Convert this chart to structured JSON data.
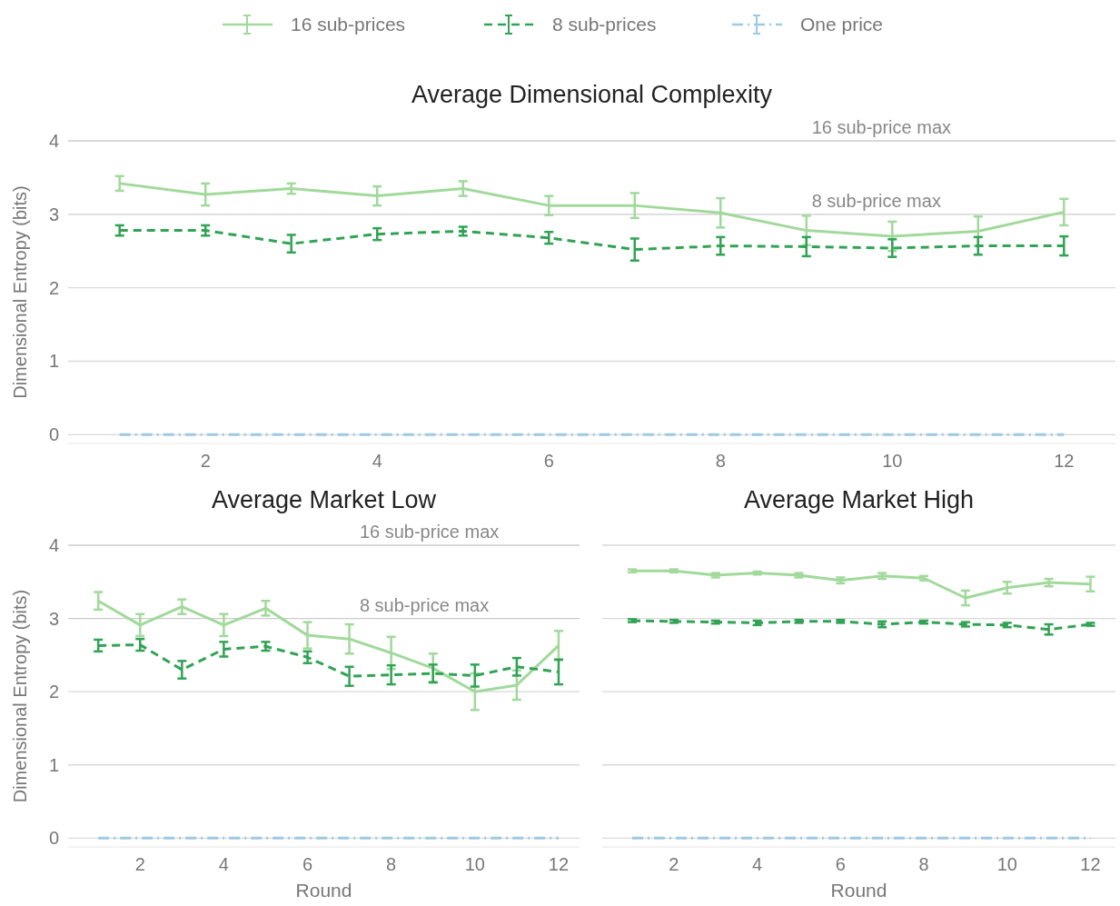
{
  "chart_data": [
    {
      "type": "line",
      "title": "Average Dimensional Complexity",
      "ylabel": "Dimensional Entropy (bits)",
      "x": [
        1,
        2,
        3,
        4,
        5,
        6,
        7,
        8,
        9,
        10,
        11,
        12
      ],
      "xlim": [
        0.4,
        12.6
      ],
      "ylim": [
        -0.12,
        4
      ],
      "xticks": [
        2,
        4,
        6,
        8,
        10,
        12
      ],
      "yticks": [
        0,
        1,
        2,
        3,
        4
      ],
      "grid": "y",
      "legend": "top",
      "marker": "none",
      "ref_lines": [
        {
          "axis": "y",
          "value": 4,
          "label": "16 sub-price max",
          "color": "#cccccc"
        },
        {
          "axis": "y",
          "value": 3,
          "label": "8 sub-price max",
          "color": "#cccccc"
        }
      ],
      "series": [
        {
          "name": "16 sub-prices",
          "color": "#a1d99b",
          "line_style": "solid",
          "values": [
            3.42,
            3.27,
            3.35,
            3.25,
            3.35,
            3.12,
            3.12,
            3.02,
            2.78,
            2.7,
            2.77,
            3.03
          ],
          "errors": [
            0.1,
            0.15,
            0.07,
            0.13,
            0.1,
            0.13,
            0.17,
            0.2,
            0.2,
            0.2,
            0.2,
            0.18
          ]
        },
        {
          "name": "8 sub-prices",
          "color": "#31a354",
          "line_style": "dashed",
          "values": [
            2.78,
            2.78,
            2.6,
            2.73,
            2.77,
            2.68,
            2.52,
            2.57,
            2.56,
            2.54,
            2.57,
            2.57
          ],
          "errors": [
            0.07,
            0.07,
            0.12,
            0.08,
            0.06,
            0.08,
            0.15,
            0.12,
            0.13,
            0.12,
            0.12,
            0.13
          ]
        },
        {
          "name": "One price",
          "color": "#9ecae1",
          "line_style": "dashdot",
          "values": [
            0,
            0,
            0,
            0,
            0,
            0,
            0,
            0,
            0,
            0,
            0,
            0
          ]
        }
      ]
    },
    {
      "type": "line",
      "title": "Average Market Low",
      "xlabel": "Round",
      "ylabel": "Dimensional Entropy (bits)",
      "x": [
        1,
        2,
        3,
        4,
        5,
        6,
        7,
        8,
        9,
        10,
        11,
        12
      ],
      "xlim": [
        0.28,
        12.5
      ],
      "ylim": [
        -0.12,
        4
      ],
      "xticks": [
        2,
        4,
        6,
        8,
        10,
        12
      ],
      "yticks": [
        0,
        1,
        2,
        3,
        4
      ],
      "grid": "y",
      "marker": "none",
      "ref_lines": [
        {
          "axis": "y",
          "value": 4,
          "label": "16 sub-price max",
          "color": "#cccccc"
        },
        {
          "axis": "y",
          "value": 3,
          "label": "8 sub-price max",
          "color": "#cccccc"
        }
      ],
      "series": [
        {
          "color": "#a1d99b",
          "line_style": "solid",
          "values": [
            3.24,
            2.91,
            3.16,
            2.91,
            3.14,
            2.77,
            2.72,
            2.53,
            2.32,
            2.0,
            2.09,
            2.63
          ],
          "errors": [
            0.12,
            0.15,
            0.1,
            0.15,
            0.1,
            0.18,
            0.2,
            0.22,
            0.2,
            0.25,
            0.2,
            0.2
          ]
        },
        {
          "color": "#31a354",
          "line_style": "dashed",
          "values": [
            2.63,
            2.64,
            2.3,
            2.58,
            2.62,
            2.47,
            2.21,
            2.23,
            2.25,
            2.22,
            2.34,
            2.27
          ],
          "errors": [
            0.08,
            0.08,
            0.12,
            0.1,
            0.06,
            0.08,
            0.13,
            0.13,
            0.12,
            0.15,
            0.12,
            0.17
          ]
        },
        {
          "color": "#9ecae1",
          "line_style": "dashdot",
          "values": [
            0,
            0,
            0,
            0,
            0,
            0,
            0,
            0,
            0,
            0,
            0,
            0
          ]
        }
      ]
    },
    {
      "type": "line",
      "title": "Average Market High",
      "xlabel": "Round",
      "x": [
        1,
        2,
        3,
        4,
        5,
        6,
        7,
        8,
        9,
        10,
        11,
        12
      ],
      "xlim": [
        0.28,
        12.6
      ],
      "ylim": [
        -0.12,
        4
      ],
      "xticks": [
        2,
        4,
        6,
        8,
        10,
        12
      ],
      "yticks": [
        0,
        1,
        2,
        3,
        4
      ],
      "grid": "y",
      "marker": "none",
      "tick_labels": "x",
      "series": [
        {
          "color": "#a1d99b",
          "line_style": "solid",
          "values": [
            3.65,
            3.65,
            3.59,
            3.62,
            3.59,
            3.52,
            3.58,
            3.55,
            3.28,
            3.42,
            3.49,
            3.47
          ],
          "errors": [
            0.02,
            0.02,
            0.03,
            0.02,
            0.03,
            0.04,
            0.04,
            0.03,
            0.1,
            0.08,
            0.05,
            0.1
          ]
        },
        {
          "color": "#31a354",
          "line_style": "dashed",
          "values": [
            2.97,
            2.96,
            2.95,
            2.94,
            2.96,
            2.96,
            2.92,
            2.95,
            2.92,
            2.91,
            2.85,
            2.92
          ],
          "errors": [
            0.02,
            0.02,
            0.02,
            0.03,
            0.02,
            0.02,
            0.04,
            0.02,
            0.03,
            0.03,
            0.07,
            0.02
          ]
        },
        {
          "color": "#9ecae1",
          "line_style": "dashdot",
          "values": [
            0,
            0,
            0,
            0,
            0,
            0,
            0,
            0,
            0,
            0,
            0,
            0
          ]
        }
      ]
    }
  ]
}
